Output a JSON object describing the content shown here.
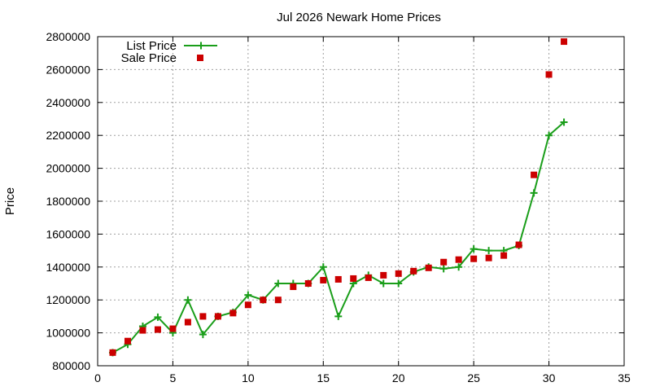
{
  "chart_data": {
    "type": "line",
    "title": "Jul 2026 Newark Home Prices",
    "xlabel": "",
    "ylabel": "Price",
    "xlim": [
      0,
      35
    ],
    "ylim": [
      800000,
      2800000
    ],
    "xticks": [
      0,
      5,
      10,
      15,
      20,
      25,
      30,
      35
    ],
    "yticks": [
      800000,
      1000000,
      1200000,
      1400000,
      1600000,
      1800000,
      2000000,
      2200000,
      2400000,
      2600000,
      2800000
    ],
    "grid": true,
    "legend_position": "top-left",
    "series": [
      {
        "name": "List Price",
        "style": "line-with-plus-markers",
        "color": "#1a9e1a",
        "points": [
          [
            1,
            880000
          ],
          [
            2,
            930000
          ],
          [
            3,
            1040000
          ],
          [
            4,
            1095000
          ],
          [
            5,
            1000000
          ],
          [
            6,
            1200000
          ],
          [
            7,
            990000
          ],
          [
            8,
            1100000
          ],
          [
            9,
            1125000
          ],
          [
            10,
            1230000
          ],
          [
            11,
            1200000
          ],
          [
            12,
            1300000
          ],
          [
            13,
            1300000
          ],
          [
            14,
            1300000
          ],
          [
            15,
            1400000
          ],
          [
            16,
            1100000
          ],
          [
            17,
            1300000
          ],
          [
            18,
            1350000
          ],
          [
            19,
            1300000
          ],
          [
            20,
            1300000
          ],
          [
            21,
            1370000
          ],
          [
            22,
            1400000
          ],
          [
            23,
            1390000
          ],
          [
            24,
            1400000
          ],
          [
            25,
            1510000
          ],
          [
            26,
            1500000
          ],
          [
            27,
            1500000
          ],
          [
            28,
            1530000
          ],
          [
            29,
            1850000
          ],
          [
            30,
            2200000
          ],
          [
            31,
            2280000
          ]
        ]
      },
      {
        "name": "Sale Price",
        "style": "square-markers",
        "color": "#cc0000",
        "points": [
          [
            1,
            880000
          ],
          [
            2,
            950000
          ],
          [
            3,
            1015000
          ],
          [
            4,
            1020000
          ],
          [
            5,
            1025000
          ],
          [
            6,
            1065000
          ],
          [
            7,
            1100000
          ],
          [
            8,
            1100000
          ],
          [
            9,
            1120000
          ],
          [
            10,
            1170000
          ],
          [
            11,
            1200000
          ],
          [
            12,
            1200000
          ],
          [
            13,
            1280000
          ],
          [
            14,
            1300000
          ],
          [
            15,
            1320000
          ],
          [
            16,
            1325000
          ],
          [
            17,
            1330000
          ],
          [
            18,
            1335000
          ],
          [
            19,
            1350000
          ],
          [
            20,
            1360000
          ],
          [
            21,
            1375000
          ],
          [
            22,
            1395000
          ],
          [
            23,
            1430000
          ],
          [
            24,
            1445000
          ],
          [
            25,
            1450000
          ],
          [
            26,
            1455000
          ],
          [
            27,
            1470000
          ],
          [
            28,
            1535000
          ],
          [
            29,
            1960000
          ],
          [
            30,
            2570000
          ],
          [
            31,
            2770000
          ]
        ]
      }
    ]
  }
}
